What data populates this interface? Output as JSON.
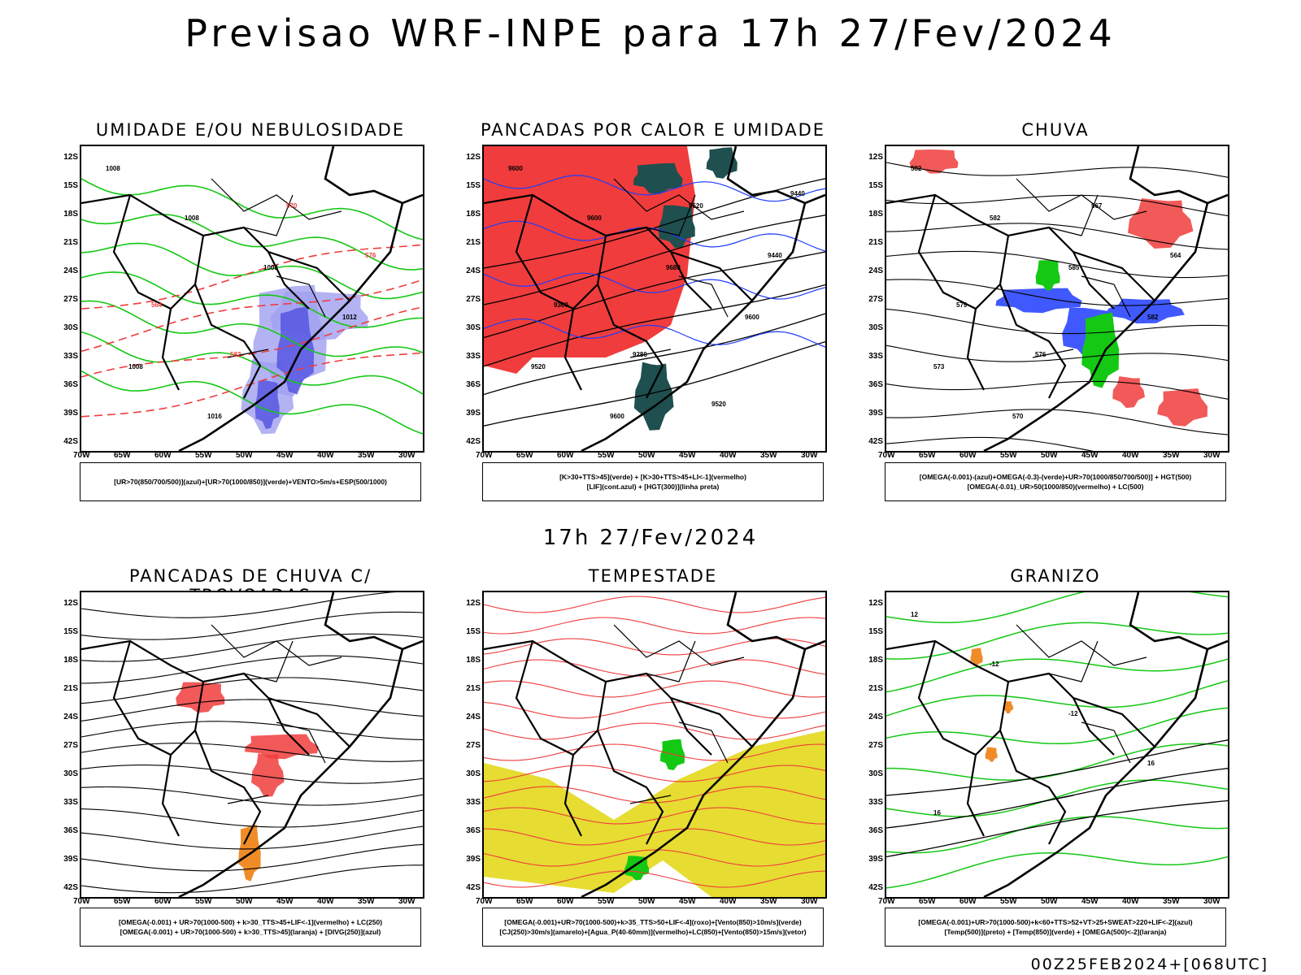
{
  "title": "Previsao WRF-INPE  para 17h 27/Fev/2024",
  "subtime": "17h 27/Fev/2024",
  "footer": "00Z25FEB2024+[068UTC]",
  "lat_labels": [
    "12S",
    "15S",
    "18S",
    "21S",
    "24S",
    "27S",
    "30S",
    "33S",
    "36S",
    "39S",
    "42S"
  ],
  "lon_labels": [
    "70W",
    "65W",
    "60W",
    "55W",
    "50W",
    "45W",
    "40W",
    "35W",
    "30W"
  ],
  "panels": [
    {
      "title": "UMIDADE E/OU NEBULOSIDADE",
      "legend": [
        "[UR>70(850/700/500)](azul)+[UR>70(1000/850)](verde)+VENTO>5m/s+ESP(500/1000)"
      ],
      "contour_labels": [
        "1008",
        "1008",
        "1008",
        "1012",
        "1008",
        "1016",
        "570",
        "576",
        "564",
        "582"
      ]
    },
    {
      "title": "PANCADAS POR CALOR E UMIDADE",
      "legend": [
        "[K>30+TTS>45](verde) + [K>30+TTS>45+LI<-1](vermelho)",
        "[LIF](cont.azul) + [HGT(300)](linha preta)"
      ],
      "contour_labels": [
        "9600",
        "9600",
        "9680",
        "9600",
        "9520",
        "9600",
        "9520",
        "9440",
        "9360",
        "9280",
        "9520",
        "9440"
      ]
    },
    {
      "title": "CHUVA",
      "legend": [
        "[OMEGA(-0.001)-(azul)+OMEGA(-0.3)-(verde)+UR>70(1000/850/700/500)] + HGT(500)",
        "[OMEGA(-0.01)_UR>50(1000/850)(vermelho) + LC(500)"
      ],
      "contour_labels": [
        "582",
        "582",
        "585",
        "582",
        "573",
        "570",
        "567",
        "564",
        "579",
        "576"
      ]
    },
    {
      "title": "PANCADAS DE CHUVA C/ TROVOADAS",
      "legend": [
        "[OMEGA(-0.001) + UR>70(1000-500) + k>30_TTS>45+LIF<-1](vermelho) + LC(250)",
        "[OMEGA(-0.001) + UR>70(1000-500) + k>30_TTS>45](laranja) + [DIVG(250)](azul)"
      ],
      "contour_labels": []
    },
    {
      "title": "TEMPESTADE",
      "legend": [
        "[OMEGA(-0.001)+UR>70(1000-500)+k>35_TTS>50+LIF<-4](roxo)+[Vento(850)>10m/s](verde)",
        "[CJ(250)>30m/s](amarelo)+[Agua_P(40-60mm)](vermelho)+LC(850)+[Vento(850)>15m/s](vetor)"
      ],
      "contour_labels": []
    },
    {
      "title": "GRANIZO",
      "legend": [
        "[OMEGA(-0.001)+UR>70(1000-500)+k<60+TTS>52+VT>25+SWEAT>220+LIF<-2](azul)",
        "[Temp(500)](preto) + [Temp(850)](verde) + [OMEGA(500)<-2](laranja)"
      ],
      "contour_labels": [
        "12",
        "-12",
        "-12",
        "16",
        "16"
      ]
    }
  ],
  "colors": {
    "red": "#f03c3c",
    "green": "#14c814",
    "blue": "#1e3cff",
    "lightblue": "#a0a0f0",
    "darkteal": "#1f4f4f",
    "yellow": "#e6dc32",
    "orange": "#f08c28",
    "purple": "#a000c8"
  }
}
